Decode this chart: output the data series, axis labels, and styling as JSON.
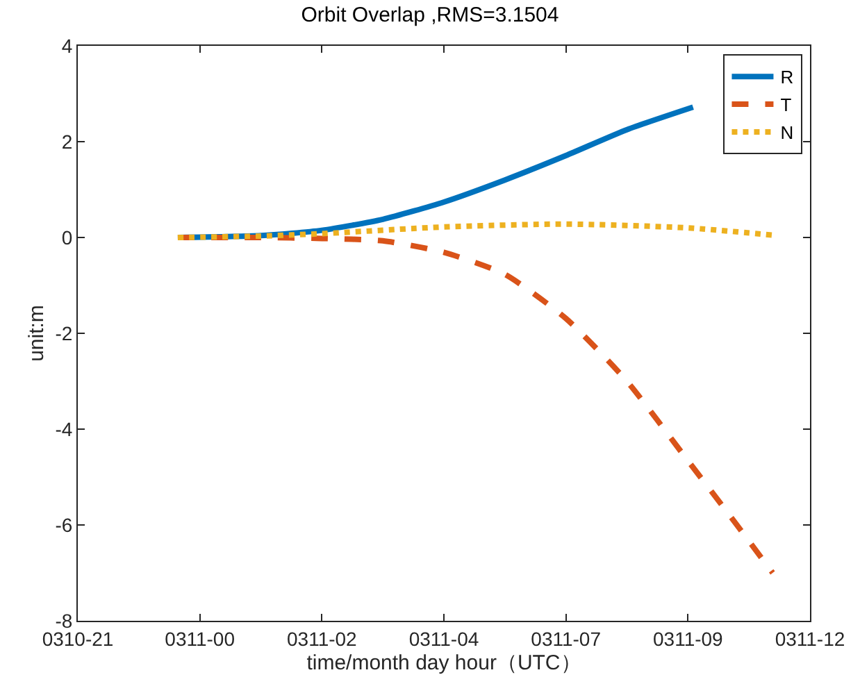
{
  "chart_data": {
    "type": "line",
    "title": "Orbit Overlap ,RMS=3.1504",
    "xlabel": "time/month day hour（UTC）",
    "ylabel": "unit:m",
    "xlim": [
      "--03-10T21:36",
      "--03-11T12:00"
    ],
    "xticks": [
      {
        "value": "--03-10T21:36",
        "label": "0310-21"
      },
      {
        "value": "--03-11T00:00",
        "label": "0311-00"
      },
      {
        "value": "--03-11T02:24",
        "label": "0311-02"
      },
      {
        "value": "--03-11T04:48",
        "label": "0311-04"
      },
      {
        "value": "--03-11T07:12",
        "label": "0311-07"
      },
      {
        "value": "--03-11T09:36",
        "label": "0311-09"
      },
      {
        "value": "--03-11T12:00",
        "label": "0311-12"
      }
    ],
    "ylim": [
      -8,
      4
    ],
    "yticks": [
      -8,
      -6,
      -4,
      -2,
      0,
      2,
      4
    ],
    "grid": false,
    "legend": "top right",
    "marker": "none",
    "series": [
      {
        "name": "R",
        "color": "#0072bd",
        "line_style": "solid",
        "x": [
          "--03-10T23:34",
          "--03-11T01:12",
          "--03-11T02:24",
          "--03-11T03:36",
          "--03-11T04:48",
          "--03-11T06:00",
          "--03-11T07:12",
          "--03-11T08:24",
          "--03-11T09:42"
        ],
        "values": [
          0,
          0.04,
          0.15,
          0.38,
          0.74,
          1.2,
          1.71,
          2.25,
          2.72
        ]
      },
      {
        "name": "T",
        "color": "#d95319",
        "line_style": "dashed",
        "x": [
          "--03-10T23:34",
          "--03-11T01:12",
          "--03-11T02:24",
          "--03-11T03:36",
          "--03-11T04:48",
          "--03-11T06:00",
          "--03-11T07:12",
          "--03-11T08:24",
          "--03-11T09:36",
          "--03-11T10:24",
          "--03-11T11:16"
        ],
        "values": [
          0,
          0,
          -0.02,
          -0.07,
          -0.31,
          -0.77,
          -1.69,
          -3.0,
          -4.66,
          -5.77,
          -7.0
        ]
      },
      {
        "name": "N",
        "color": "#edb120",
        "line_style": "dotted",
        "x": [
          "--03-10T23:34",
          "--03-11T01:12",
          "--03-11T02:24",
          "--03-11T04:48",
          "--03-11T07:12",
          "--03-11T09:36",
          "--03-11T11:16"
        ],
        "values": [
          0,
          0.03,
          0.08,
          0.22,
          0.28,
          0.2,
          0.05
        ]
      }
    ]
  }
}
